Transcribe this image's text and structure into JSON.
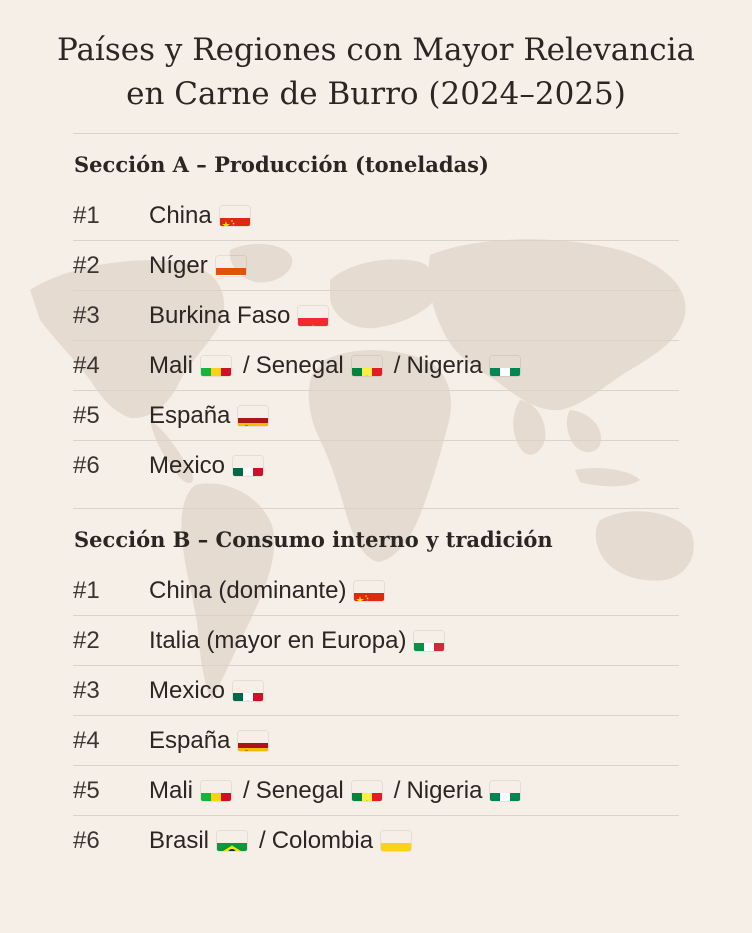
{
  "title": {
    "line1": "Países y Regiones con Mayor Relevancia",
    "line2": "en Carne de Burro (2024–2025)"
  },
  "colors": {
    "background": "#f6efe7",
    "text": "#2b2523",
    "divider": "#ddd2c8",
    "map": "#e6dbd0"
  },
  "section_a": {
    "heading": "Sección A – Producción (toneladas)",
    "rows": [
      {
        "rank": "#1",
        "parts": [
          {
            "text": "China",
            "flag": "china-flag-icon"
          }
        ]
      },
      {
        "rank": "#2",
        "parts": [
          {
            "text": "Níger",
            "flag": "niger-flag-icon"
          }
        ]
      },
      {
        "rank": "#3",
        "parts": [
          {
            "text": "Burkina Faso",
            "flag": "burkina-faso-flag-icon"
          }
        ]
      },
      {
        "rank": "#4",
        "parts": [
          {
            "text": "Mali",
            "flag": "mali-flag-icon"
          },
          {
            "text": "Senegal",
            "flag": "senegal-flag-icon"
          },
          {
            "text": "Nigeria",
            "flag": "nigeria-flag-icon"
          }
        ]
      },
      {
        "rank": "#5",
        "parts": [
          {
            "text": "España",
            "flag": "spain-flag-icon"
          }
        ]
      },
      {
        "rank": "#6",
        "parts": [
          {
            "text": "Mexico",
            "flag": "mexico-flag-icon"
          }
        ]
      }
    ]
  },
  "section_b": {
    "heading": "Sección B – Consumo interno y tradición",
    "rows": [
      {
        "rank": "#1",
        "parts": [
          {
            "text": "China (dominante)",
            "flag": "china-flag-icon"
          }
        ]
      },
      {
        "rank": "#2",
        "parts": [
          {
            "text": "Italia (mayor en Europa)",
            "flag": "italy-flag-icon"
          }
        ]
      },
      {
        "rank": "#3",
        "parts": [
          {
            "text": "Mexico",
            "flag": "mexico-flag-icon"
          }
        ]
      },
      {
        "rank": "#4",
        "parts": [
          {
            "text": "España",
            "flag": "spain-flag-icon"
          }
        ]
      },
      {
        "rank": "#5",
        "parts": [
          {
            "text": "Mali",
            "flag": "mali-flag-icon"
          },
          {
            "text": "Senegal",
            "flag": "senegal-flag-icon"
          },
          {
            "text": "Nigeria",
            "flag": "nigeria-flag-icon"
          }
        ]
      },
      {
        "rank": "#6",
        "parts": [
          {
            "text": "Brasil",
            "flag": "brazil-flag-icon"
          },
          {
            "text": "Colombia",
            "flag": "colombia-flag-icon"
          }
        ]
      }
    ]
  },
  "separator": "/"
}
